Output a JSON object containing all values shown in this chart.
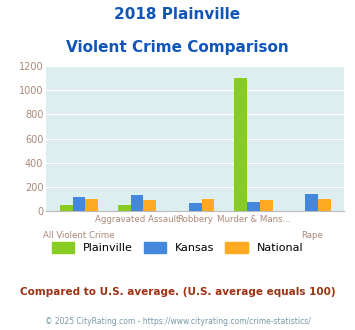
{
  "title_line1": "2018 Plainville",
  "title_line2": "Violent Crime Comparison",
  "categories": [
    "All Violent Crime",
    "Aggravated Assault",
    "Robbery",
    "Murder & Mans...",
    "Rape"
  ],
  "plainville": [
    55,
    50,
    0,
    1100,
    0
  ],
  "kansas": [
    120,
    135,
    65,
    80,
    140
  ],
  "national": [
    100,
    95,
    100,
    95,
    100
  ],
  "color_plainville": "#88cc22",
  "color_kansas": "#4488dd",
  "color_national": "#ffaa22",
  "ylim": [
    0,
    1200
  ],
  "yticks": [
    0,
    200,
    400,
    600,
    800,
    1000,
    1200
  ],
  "bg_color": "#ddeef0",
  "title_color": "#1155bb",
  "axis_label_color": "#aa8877",
  "footer_text": "Compared to U.S. average. (U.S. average equals 100)",
  "copyright_text": "© 2025 CityRating.com - https://www.cityrating.com/crime-statistics/",
  "footer_color": "#993311",
  "copyright_color": "#7799aa",
  "xlabels_top": [
    "",
    "Aggravated Assault",
    "Robbery",
    "Murder & Mans...",
    ""
  ],
  "xlabels_bottom": [
    "All Violent Crime",
    "",
    "",
    "",
    "Rape"
  ]
}
